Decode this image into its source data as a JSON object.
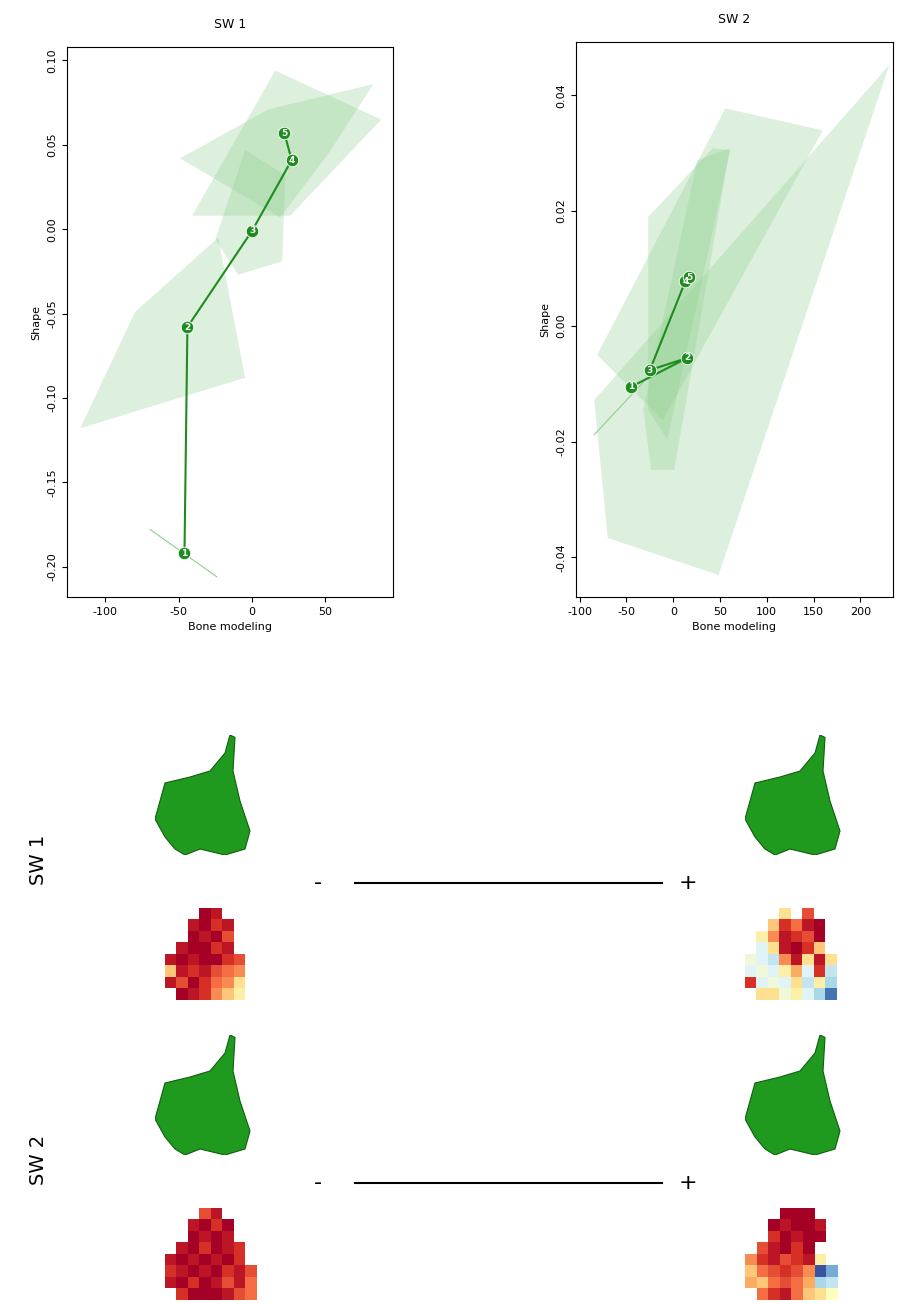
{
  "chart_data": [
    {
      "type": "line",
      "title": "SW 1",
      "x_label": "Bone modeling",
      "y_label": "Shape",
      "x": [
        -46,
        -44,
        0,
        27,
        22
      ],
      "values": [
        -0.192,
        -0.058,
        -0.001,
        0.041,
        0.057
      ],
      "point_labels": [
        "1",
        "2",
        "3",
        "4",
        "5"
      ],
      "color": "#1e8c1e",
      "marker": "circle",
      "xlim": [
        -126,
        96
      ],
      "ylim": [
        -0.218,
        0.108
      ],
      "xticks": [
        -100,
        -50,
        0,
        50
      ],
      "yticks": [
        {
          "value": -0.2,
          "label": "-0.20"
        },
        {
          "value": -0.15,
          "label": "-0.15"
        },
        {
          "value": -0.1,
          "label": "-0.10"
        },
        {
          "value": -0.05,
          "label": "-0.05"
        },
        {
          "value": 0.0,
          "label": "0.00"
        },
        {
          "value": 0.05,
          "label": "0.05"
        },
        {
          "value": 0.1,
          "label": "0.10"
        }
      ],
      "hulls": [
        [
          [
            -69.4,
            -0.178
          ],
          [
            -24,
            -0.206
          ]
        ],
        [
          [
            -117,
            -0.118
          ],
          [
            -79.6,
            -0.049
          ],
          [
            -23,
            -0.005
          ],
          [
            -4.7,
            -0.088
          ]
        ],
        [
          [
            -25,
            -0.006
          ],
          [
            -4.7,
            0.047
          ],
          [
            22.6,
            0.032
          ],
          [
            20.6,
            -0.019
          ],
          [
            -9.4,
            -0.027
          ]
        ],
        [
          [
            -40.8,
            0.008
          ],
          [
            15.8,
            0.094
          ],
          [
            88,
            0.065
          ],
          [
            26,
            0.008
          ]
        ],
        [
          [
            -49,
            0.042
          ],
          [
            11,
            0.071
          ],
          [
            82.6,
            0.086
          ],
          [
            53,
            0.046
          ],
          [
            19.2,
            0.007
          ]
        ]
      ]
    },
    {
      "type": "line",
      "title": "SW 2",
      "x_label": "Bone modeling",
      "y_label": "Shape",
      "x": [
        -45,
        15,
        -25,
        13,
        17
      ],
      "values": [
        -0.0105,
        -0.0055,
        -0.0076,
        0.0078,
        0.0085
      ],
      "point_labels": [
        "1",
        "2",
        "3",
        "4",
        "5"
      ],
      "color": "#1e8c1e",
      "marker": "circle",
      "xlim": [
        -104,
        235
      ],
      "ylim": [
        -0.0469,
        0.0492
      ],
      "xticks": [
        -100,
        -50,
        0,
        50,
        100,
        150,
        200
      ],
      "yticks": [
        {
          "value": -0.04,
          "label": "-0.04"
        },
        {
          "value": -0.02,
          "label": "-0.02"
        },
        {
          "value": 0.0,
          "label": "0.00"
        },
        {
          "value": 0.02,
          "label": "0.02"
        },
        {
          "value": 0.04,
          "label": "0.04"
        }
      ],
      "hulls": [
        [
          [
            -84.5,
            -0.0188
          ],
          [
            -32,
            -0.0097
          ]
        ],
        [
          [
            -84.5,
            -0.0128
          ],
          [
            231,
            0.0452
          ],
          [
            48.5,
            -0.0431
          ],
          [
            -70,
            -0.0367
          ]
        ],
        [
          [
            -81.4,
            -0.005
          ],
          [
            55.7,
            0.0377
          ],
          [
            160,
            0.0339
          ],
          [
            -11.3,
            -0.0163
          ]
        ],
        [
          [
            -26.8,
            0.0189
          ],
          [
            42.3,
            0.0308
          ],
          [
            60.8,
            0.0305
          ],
          [
            -6.2,
            -0.0197
          ],
          [
            -26.8,
            -0.0145
          ]
        ],
        [
          [
            -32,
            -0.0145
          ],
          [
            25.8,
            0.0287
          ],
          [
            60.8,
            0.0308
          ],
          [
            1,
            -0.0249
          ],
          [
            -23.7,
            -0.0249
          ]
        ]
      ]
    }
  ],
  "shape_panels": {
    "color_range": [
      -1,
      1
    ],
    "rows": [
      {
        "label": "SW 1",
        "minus": "-",
        "plus": "+",
        "cells_minus": [
          [
            null,
            null,
            null,
            1,
            0.9,
            null,
            null,
            null
          ],
          [
            null,
            null,
            0.9,
            1,
            0.8,
            0.9,
            null,
            null
          ],
          [
            null,
            null,
            1,
            0.9,
            1,
            0.7,
            null,
            null
          ],
          [
            null,
            0.9,
            1,
            1,
            0.8,
            0.9,
            null,
            null
          ],
          [
            0.9,
            1,
            0.9,
            1,
            1,
            0.8,
            0.7,
            null
          ],
          [
            0.3,
            0.9,
            0.8,
            0.9,
            0.7,
            0.6,
            0.5,
            null
          ],
          [
            0.9,
            0.7,
            1,
            0.8,
            0.6,
            0.5,
            0.2,
            null
          ],
          [
            null,
            1,
            0.9,
            0.8,
            0.5,
            0.3,
            0.1,
            null
          ]
        ],
        "cells_plus": [
          [
            null,
            null,
            null,
            0.2,
            null,
            0.7,
            null,
            null
          ],
          [
            null,
            null,
            0.3,
            0.8,
            0.6,
            0.9,
            1,
            null
          ],
          [
            null,
            0.1,
            0.5,
            0.9,
            0.8,
            0.7,
            1,
            null
          ],
          [
            null,
            -0.2,
            0.2,
            0.9,
            1,
            0.8,
            0.3,
            null
          ],
          [
            -0.1,
            -0.2,
            -0.3,
            0.5,
            0.9,
            0.2,
            0.9,
            0.2
          ],
          [
            -0.2,
            -0.1,
            -0.2,
            0.1,
            0.4,
            -0.2,
            0.8,
            -0.3
          ],
          [
            0.8,
            -0.2,
            -0.1,
            -0.2,
            0.2,
            -0.3,
            0.1,
            -0.4
          ],
          [
            null,
            0.2,
            0.2,
            -0.1,
            0.1,
            -0.2,
            -0.4,
            -0.8
          ]
        ]
      },
      {
        "label": "SW 2",
        "minus": "-",
        "plus": "+",
        "cells_minus": [
          [
            null,
            null,
            null,
            0.7,
            0.9,
            null,
            null,
            null
          ],
          [
            null,
            null,
            0.9,
            1,
            0.8,
            1,
            null,
            null
          ],
          [
            null,
            null,
            1,
            0.9,
            1,
            0.9,
            null,
            null
          ],
          [
            null,
            0.9,
            1,
            0.8,
            1,
            0.9,
            0.8,
            null
          ],
          [
            0.9,
            1,
            0.9,
            1,
            0.9,
            1,
            0.8,
            null
          ],
          [
            0.8,
            0.9,
            1,
            0.9,
            1,
            0.8,
            0.9,
            0.7
          ],
          [
            0.9,
            1,
            0.8,
            1,
            0.9,
            0.7,
            0.9,
            0.6
          ],
          [
            null,
            0.8,
            1,
            1,
            1,
            0.9,
            0.7,
            0.6
          ]
        ],
        "cells_plus": [
          [
            null,
            null,
            null,
            1,
            1,
            1,
            null,
            null
          ],
          [
            null,
            null,
            1,
            0.9,
            1,
            1,
            0.9,
            null
          ],
          [
            null,
            null,
            0.8,
            1,
            0.9,
            1,
            1,
            null
          ],
          [
            null,
            0.7,
            0.9,
            1,
            0.8,
            1,
            null,
            null
          ],
          [
            0.5,
            0.8,
            0.9,
            0.7,
            0.8,
            0.9,
            0.1,
            null
          ],
          [
            0.3,
            0.6,
            0.7,
            0.8,
            0.7,
            0.5,
            -0.9,
            -0.6
          ],
          [
            0.4,
            0.3,
            0.6,
            0.7,
            0.6,
            0.4,
            -0.4,
            -0.3
          ],
          [
            null,
            0.6,
            0.8,
            0.9,
            0.6,
            0.3,
            0.2,
            0.0
          ]
        ]
      }
    ]
  }
}
